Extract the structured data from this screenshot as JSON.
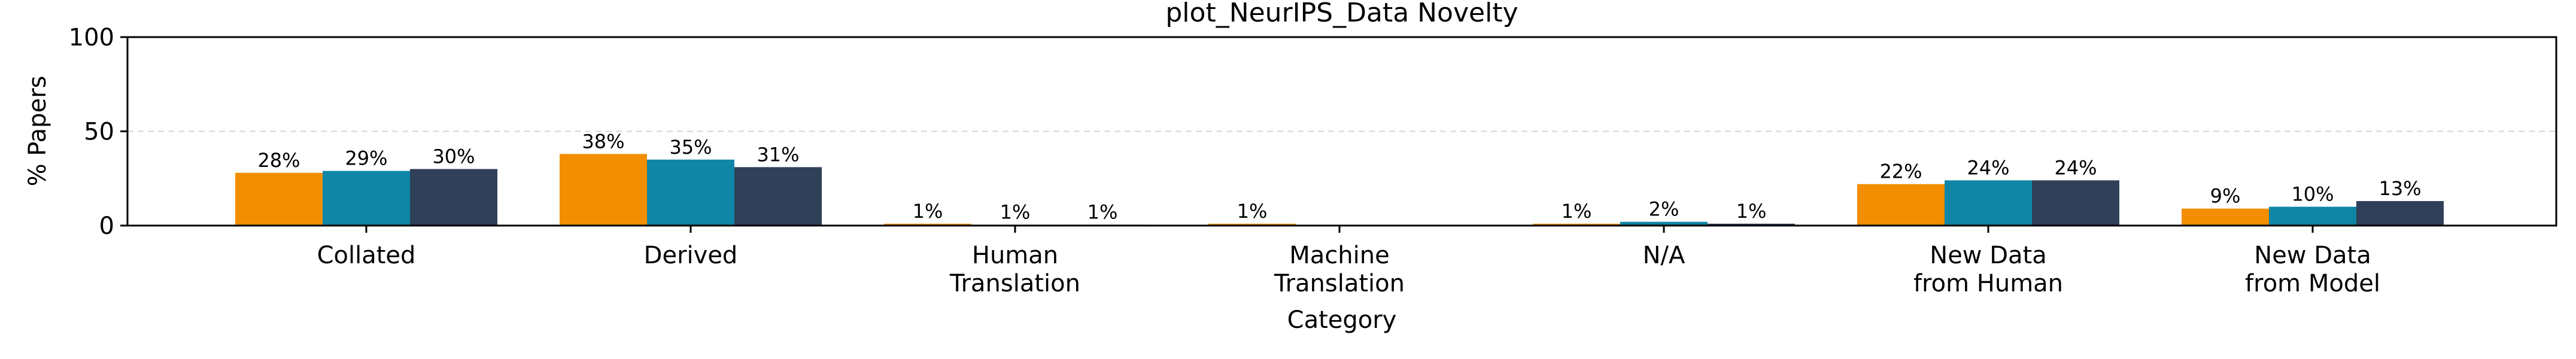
{
  "chart_data": {
    "type": "bar",
    "title": "plot_NeurIPS_Data Novelty",
    "xlabel": "Category",
    "ylabel": "% Papers",
    "ylim": [
      0,
      100
    ],
    "yticks": [
      "0",
      "50",
      "100"
    ],
    "grid": "horizontal dashed at 50",
    "categories": [
      [
        "Collated"
      ],
      [
        "Derived"
      ],
      [
        "Human",
        "Translation"
      ],
      [
        "Machine",
        "Translation"
      ],
      [
        "N/A"
      ],
      [
        "New Data",
        "from Human"
      ],
      [
        "New Data",
        "from Model"
      ]
    ],
    "series": [
      {
        "color": "#f28e00",
        "values": [
          28,
          38,
          1,
          1,
          1,
          22,
          9
        ],
        "labels": [
          "28%",
          "38%",
          "1%",
          "1%",
          "1%",
          "22%",
          "9%"
        ]
      },
      {
        "color": "#0f86a6",
        "values": [
          29,
          35,
          0.5,
          0,
          2,
          24,
          10
        ],
        "labels": [
          "29%",
          "35%",
          "1%",
          "",
          "2%",
          "24%",
          "10%"
        ]
      },
      {
        "color": "#2f4058",
        "values": [
          30,
          31,
          0.5,
          0,
          1,
          24,
          13
        ],
        "labels": [
          "30%",
          "31%",
          "1%",
          "",
          "1%",
          "24%",
          "13%"
        ]
      }
    ]
  }
}
